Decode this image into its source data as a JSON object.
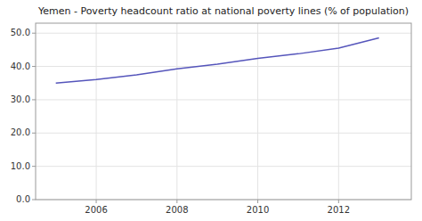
{
  "chart_data": {
    "type": "line",
    "title": "Yemen - Poverty headcount ratio at national poverty lines (% of population)",
    "x": [
      2005,
      2006,
      2007,
      2008,
      2009,
      2010,
      2011,
      2012,
      2013
    ],
    "values": [
      35.0,
      36.1,
      37.5,
      39.3,
      40.7,
      42.4,
      43.8,
      45.5,
      48.6
    ],
    "color": "#5555bb",
    "xlim": [
      2004.5,
      2013.8
    ],
    "ylim": [
      0.0,
      53.0
    ],
    "xticks": [
      2006,
      2008,
      2010,
      2012
    ],
    "yticks": [
      {
        "value": 0.0,
        "label": "0.0"
      },
      {
        "value": 10.0,
        "label": "10.0"
      },
      {
        "value": 20.0,
        "label": "20.0"
      },
      {
        "value": 30.0,
        "label": "30.0"
      },
      {
        "value": 40.0,
        "label": "40.0"
      },
      {
        "value": 50.0,
        "label": "50.0"
      }
    ],
    "grid": true
  }
}
